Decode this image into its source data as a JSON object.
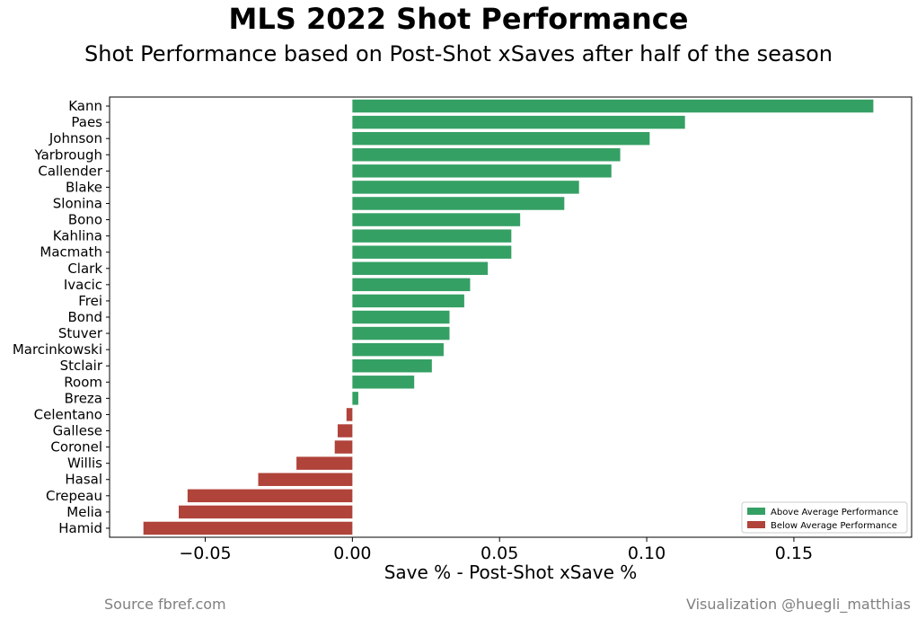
{
  "title": "MLS 2022 Shot Performance",
  "subtitle": "Shot Performance based on Post-Shot xSaves after half of the season",
  "source": "Source fbref.com",
  "credit": "Visualization @huegli_matthias",
  "colors": {
    "above": "#35a064",
    "below": "#b0433a"
  },
  "chart_data": {
    "type": "bar",
    "orientation": "horizontal",
    "xlabel": "Save % - Post-Shot xSave %",
    "ylabel": "",
    "xlim": [
      -0.0825,
      0.19
    ],
    "xticks": [
      -0.05,
      0.0,
      0.05,
      0.1,
      0.15
    ],
    "xtick_labels": [
      "−0.05",
      "0.00",
      "0.05",
      "0.10",
      "0.15"
    ],
    "categories": [
      "Kann",
      "Paes",
      "Johnson",
      "Yarbrough",
      "Callender",
      "Blake",
      "Slonina",
      "Bono",
      "Kahlina",
      "Macmath",
      "Clark",
      "Ivacic",
      "Frei",
      "Bond",
      "Stuver",
      "Marcinkowski",
      "Stclair",
      "Room",
      "Breza",
      "Celentano",
      "Gallese",
      "Coronel",
      "Willis",
      "Hasal",
      "Crepeau",
      "Melia",
      "Hamid"
    ],
    "values": [
      0.177,
      0.113,
      0.101,
      0.091,
      0.088,
      0.077,
      0.072,
      0.057,
      0.054,
      0.054,
      0.046,
      0.04,
      0.038,
      0.033,
      0.033,
      0.031,
      0.027,
      0.021,
      0.002,
      -0.002,
      -0.005,
      -0.006,
      -0.019,
      -0.032,
      -0.056,
      -0.059,
      -0.071
    ],
    "legend": {
      "placement": "lower-right",
      "entries": [
        {
          "label": "Above Average Performance",
          "color": "#35a064"
        },
        {
          "label": "Below Average Performance",
          "color": "#b0433a"
        }
      ]
    },
    "grid": false
  }
}
